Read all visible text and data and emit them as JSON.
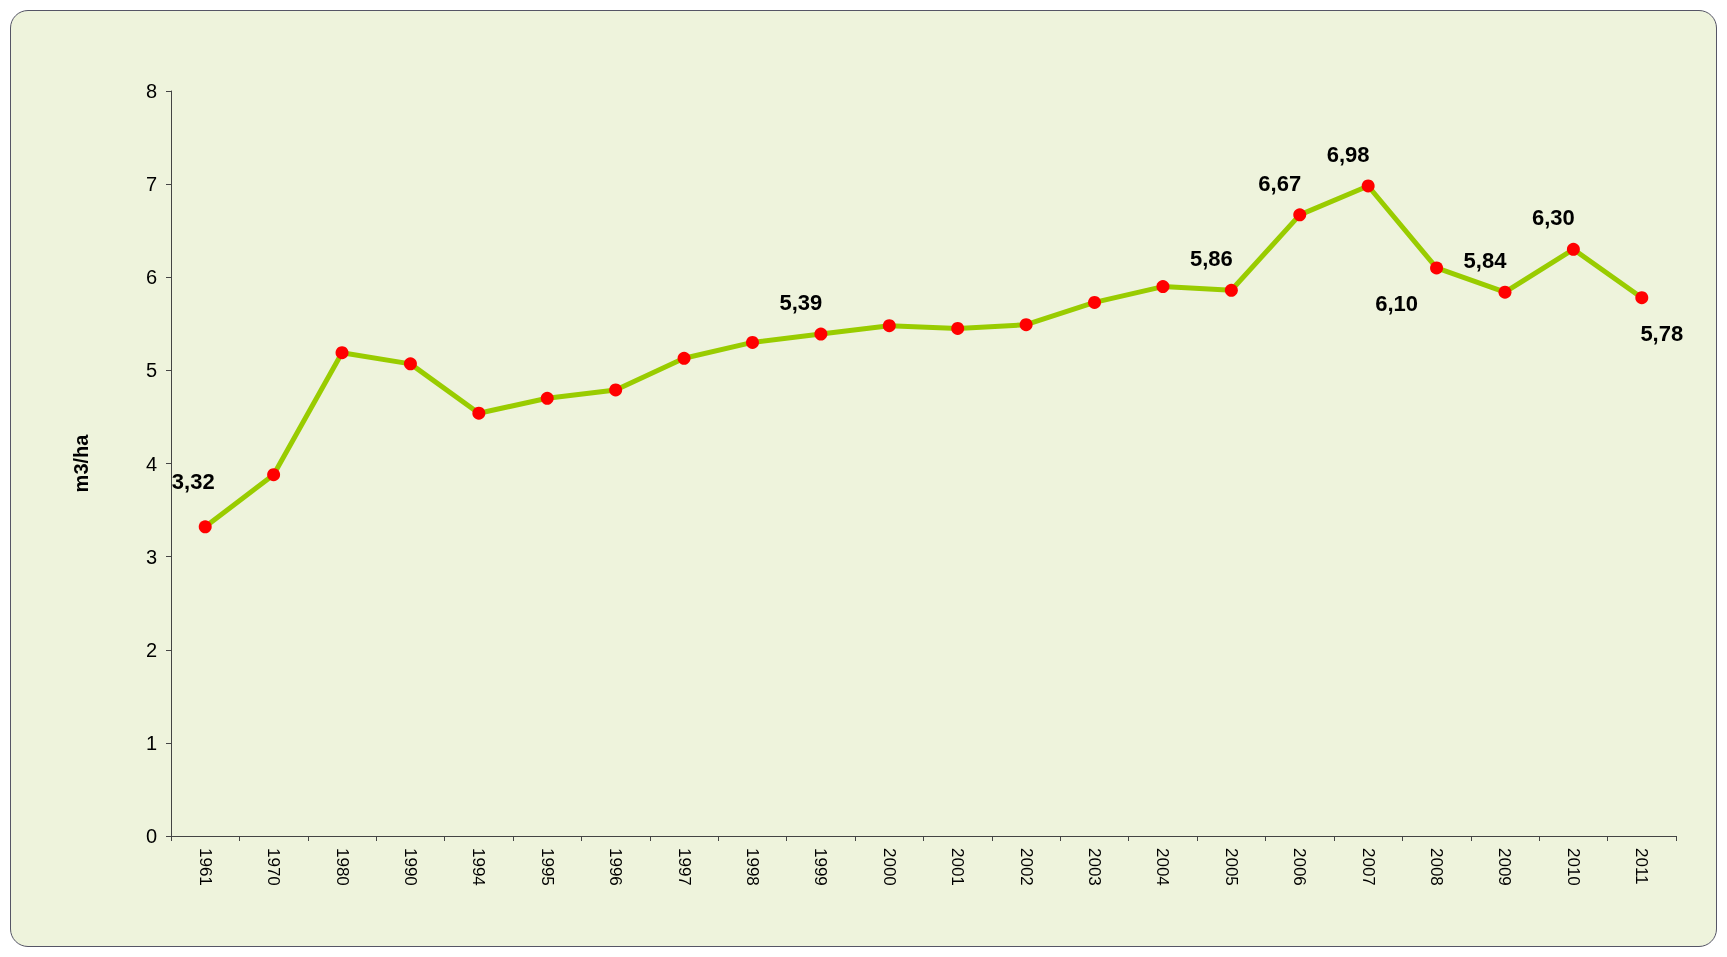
{
  "chart_data": {
    "type": "line",
    "ylabel": "m3/ha",
    "categories": [
      "1961",
      "1970",
      "1980",
      "1990",
      "1994",
      "1995",
      "1996",
      "1997",
      "1998",
      "1999",
      "2000",
      "2001",
      "2002",
      "2003",
      "2004",
      "2005",
      "2006",
      "2007",
      "2008",
      "2009",
      "2010",
      "2011"
    ],
    "series": [
      {
        "color": "#99cc00",
        "values": [
          3.32,
          3.88,
          5.19,
          5.07,
          4.54,
          4.7,
          4.79,
          5.13,
          5.3,
          5.39,
          5.48,
          5.45,
          5.49,
          5.73,
          5.9,
          5.86,
          6.67,
          6.98,
          6.1,
          5.84,
          6.3,
          5.78
        ],
        "value_labels": [
          "3,32",
          null,
          null,
          null,
          null,
          null,
          null,
          null,
          null,
          "5,39",
          null,
          null,
          null,
          null,
          null,
          "5,86",
          "6,67",
          "6,98",
          "6,10",
          "5,84",
          "6,30",
          "5,78"
        ],
        "colors": [
          "#ff0000",
          "#ff0000",
          "#ff0000",
          "#ff0000",
          "#ff0000",
          "#ff0000",
          "#ff0000",
          "#ff0000",
          "#ff0000",
          "#ff0000",
          "#ff0000",
          "#ff0000",
          "#ff0000",
          "#ff0000",
          "#ff0000",
          "#ff0000",
          "#ff0000",
          "#ff0000",
          "#ff0000",
          "#ff0000",
          "#ff0000",
          "#ff0000"
        ]
      }
    ],
    "ylim": [
      0,
      8
    ],
    "yticks": [
      0,
      1,
      2,
      3,
      4,
      5,
      6,
      7,
      8
    ],
    "grid": false,
    "marker": "circle",
    "line_style": "solid"
  }
}
